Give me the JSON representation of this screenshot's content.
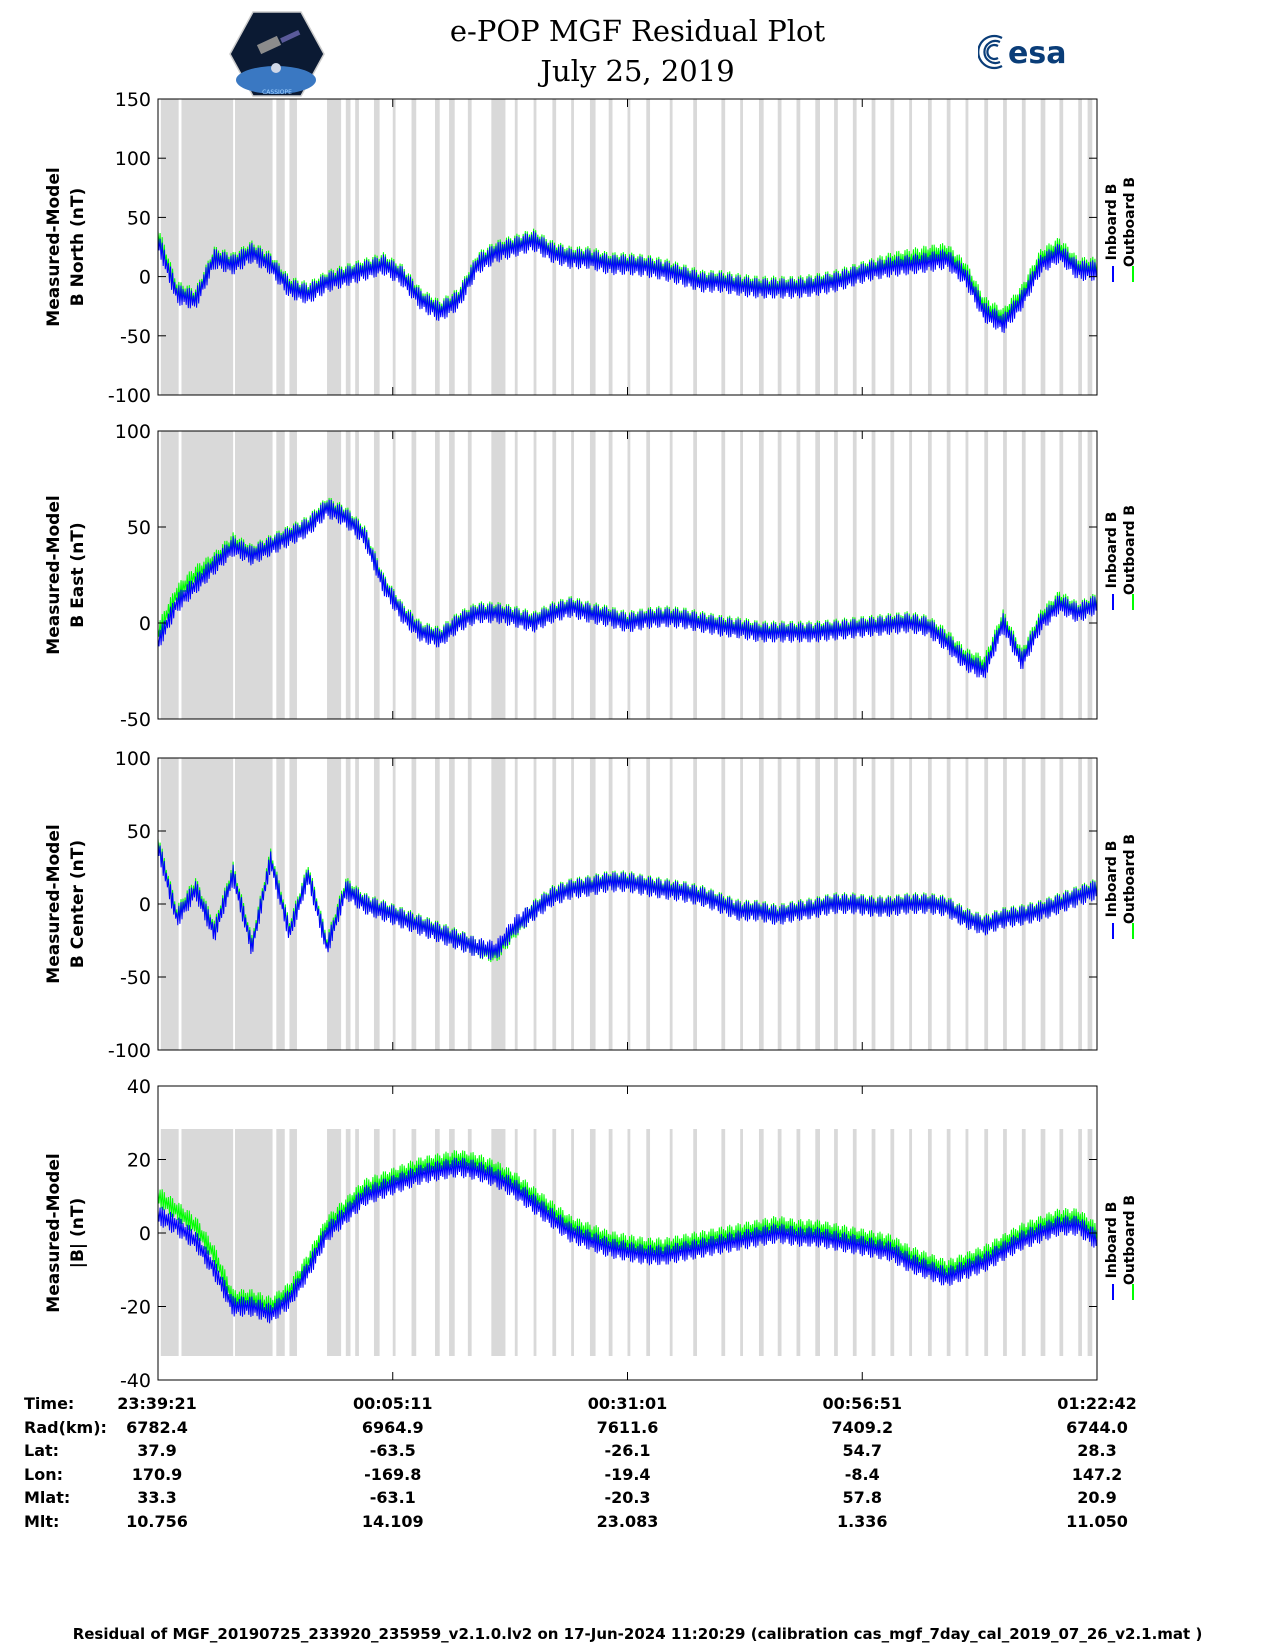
{
  "title": "e-POP MGF Residual Plot",
  "date": "July 25, 2019",
  "logo_left": "CASSIOPE",
  "logo_right": "esa",
  "legend": {
    "inboard_label": "Inboard B",
    "outboard_label": "Outboard B",
    "inboard_color": "#0000ff",
    "outboard_color": "#00ff00"
  },
  "colors": {
    "gap_shading": "#d9d9d9",
    "axes": "#000000"
  },
  "chart_data": [
    {
      "type": "line",
      "ylabel": [
        "Measured-Model",
        "B North (nT)"
      ],
      "ylim": [
        -100,
        150
      ],
      "yticks": [
        -100,
        -50,
        0,
        50,
        100,
        150
      ],
      "series": [
        {
          "name": "Inboard B",
          "x": [
            0,
            0.02,
            0.04,
            0.06,
            0.08,
            0.1,
            0.12,
            0.14,
            0.16,
            0.18,
            0.2,
            0.22,
            0.24,
            0.26,
            0.28,
            0.3,
            0.32,
            0.34,
            0.36,
            0.38,
            0.4,
            0.42,
            0.44,
            0.46,
            0.48,
            0.5,
            0.52,
            0.54,
            0.56,
            0.58,
            0.6,
            0.62,
            0.64,
            0.66,
            0.68,
            0.7,
            0.72,
            0.74,
            0.76,
            0.78,
            0.8,
            0.82,
            0.84,
            0.86,
            0.88,
            0.9,
            0.92,
            0.94,
            0.96,
            0.98,
            1.0
          ],
          "y": [
            30,
            -15,
            -20,
            15,
            10,
            20,
            10,
            -10,
            -15,
            -5,
            0,
            5,
            10,
            0,
            -20,
            -30,
            -20,
            10,
            20,
            25,
            30,
            20,
            15,
            15,
            10,
            10,
            8,
            5,
            0,
            -5,
            -5,
            -8,
            -10,
            -10,
            -10,
            -8,
            -5,
            0,
            5,
            8,
            10,
            12,
            15,
            0,
            -30,
            -40,
            -20,
            10,
            20,
            5,
            5
          ]
        },
        {
          "name": "Outboard B",
          "x": [
            0,
            0.02,
            0.04,
            0.06,
            0.08,
            0.1,
            0.12,
            0.14,
            0.16,
            0.18,
            0.2,
            0.22,
            0.24,
            0.26,
            0.28,
            0.3,
            0.32,
            0.34,
            0.36,
            0.38,
            0.4,
            0.42,
            0.44,
            0.46,
            0.48,
            0.5,
            0.52,
            0.54,
            0.56,
            0.58,
            0.6,
            0.62,
            0.64,
            0.66,
            0.68,
            0.7,
            0.72,
            0.74,
            0.76,
            0.78,
            0.8,
            0.82,
            0.84,
            0.86,
            0.88,
            0.9,
            0.92,
            0.94,
            0.96,
            0.98,
            1.0
          ],
          "y": [
            35,
            -12,
            -18,
            17,
            12,
            22,
            12,
            -8,
            -13,
            -3,
            2,
            7,
            12,
            2,
            -18,
            -28,
            -18,
            12,
            22,
            27,
            32,
            22,
            17,
            17,
            12,
            12,
            10,
            7,
            2,
            -3,
            -3,
            -6,
            -8,
            -8,
            -8,
            -6,
            -3,
            2,
            7,
            12,
            15,
            18,
            20,
            5,
            -25,
            -35,
            -15,
            15,
            25,
            8,
            8
          ]
        }
      ]
    },
    {
      "type": "line",
      "ylabel": [
        "Measured-Model",
        "B East (nT)"
      ],
      "ylim": [
        -50,
        100
      ],
      "yticks": [
        -50,
        0,
        50,
        100
      ],
      "series": [
        {
          "name": "Inboard B",
          "x": [
            0,
            0.02,
            0.04,
            0.06,
            0.08,
            0.1,
            0.12,
            0.14,
            0.16,
            0.18,
            0.2,
            0.22,
            0.24,
            0.26,
            0.28,
            0.3,
            0.32,
            0.34,
            0.36,
            0.38,
            0.4,
            0.42,
            0.44,
            0.46,
            0.48,
            0.5,
            0.52,
            0.54,
            0.56,
            0.58,
            0.6,
            0.62,
            0.64,
            0.66,
            0.68,
            0.7,
            0.72,
            0.74,
            0.76,
            0.78,
            0.8,
            0.82,
            0.84,
            0.86,
            0.88,
            0.9,
            0.92,
            0.94,
            0.96,
            0.98,
            1.0
          ],
          "y": [
            -10,
            10,
            20,
            30,
            40,
            35,
            40,
            45,
            50,
            60,
            55,
            45,
            20,
            5,
            -5,
            -8,
            0,
            5,
            5,
            3,
            0,
            5,
            8,
            5,
            3,
            0,
            2,
            3,
            2,
            0,
            -2,
            -3,
            -5,
            -5,
            -5,
            -5,
            -4,
            -3,
            -2,
            -1,
            0,
            -2,
            -10,
            -20,
            -25,
            0,
            -20,
            0,
            10,
            5,
            10
          ]
        },
        {
          "name": "Outboard B",
          "x": [
            0,
            0.02,
            0.04,
            0.06,
            0.08,
            0.1,
            0.12,
            0.14,
            0.16,
            0.18,
            0.2,
            0.22,
            0.24,
            0.26,
            0.28,
            0.3,
            0.32,
            0.34,
            0.36,
            0.38,
            0.4,
            0.42,
            0.44,
            0.46,
            0.48,
            0.5,
            0.52,
            0.54,
            0.56,
            0.58,
            0.6,
            0.62,
            0.64,
            0.66,
            0.68,
            0.7,
            0.72,
            0.74,
            0.76,
            0.78,
            0.8,
            0.82,
            0.84,
            0.86,
            0.88,
            0.9,
            0.92,
            0.94,
            0.96,
            0.98,
            1.0
          ],
          "y": [
            -5,
            15,
            25,
            32,
            42,
            36,
            41,
            46,
            51,
            61,
            56,
            46,
            21,
            6,
            -4,
            -7,
            1,
            6,
            6,
            4,
            1,
            6,
            9,
            6,
            4,
            1,
            3,
            4,
            3,
            1,
            -1,
            -2,
            -4,
            -4,
            -4,
            -4,
            -3,
            -2,
            -1,
            0,
            1,
            -1,
            -8,
            -18,
            -22,
            2,
            -18,
            2,
            12,
            6,
            11
          ]
        }
      ]
    },
    {
      "type": "line",
      "ylabel": [
        "Measured-Model",
        "B Center (nT)"
      ],
      "ylim": [
        -100,
        100
      ],
      "yticks": [
        -100,
        -50,
        0,
        50,
        100
      ],
      "series": [
        {
          "name": "Inboard B",
          "x": [
            0,
            0.02,
            0.04,
            0.06,
            0.08,
            0.1,
            0.12,
            0.14,
            0.16,
            0.18,
            0.2,
            0.22,
            0.24,
            0.26,
            0.28,
            0.3,
            0.32,
            0.34,
            0.36,
            0.38,
            0.4,
            0.42,
            0.44,
            0.46,
            0.48,
            0.5,
            0.52,
            0.54,
            0.56,
            0.58,
            0.6,
            0.62,
            0.64,
            0.66,
            0.68,
            0.7,
            0.72,
            0.74,
            0.76,
            0.78,
            0.8,
            0.82,
            0.84,
            0.86,
            0.88,
            0.9,
            0.92,
            0.94,
            0.96,
            0.98,
            1.0
          ],
          "y": [
            40,
            -10,
            10,
            -20,
            20,
            -30,
            30,
            -20,
            20,
            -30,
            10,
            0,
            -5,
            -10,
            -15,
            -20,
            -25,
            -30,
            -32,
            -15,
            -5,
            5,
            10,
            12,
            15,
            15,
            12,
            10,
            8,
            5,
            0,
            -5,
            -5,
            -8,
            -5,
            -3,
            0,
            0,
            -2,
            -2,
            0,
            0,
            -2,
            -10,
            -15,
            -10,
            -8,
            -5,
            0,
            5,
            10
          ]
        },
        {
          "name": "Outboard B",
          "x": [
            0,
            0.02,
            0.04,
            0.06,
            0.08,
            0.1,
            0.12,
            0.14,
            0.16,
            0.18,
            0.2,
            0.22,
            0.24,
            0.26,
            0.28,
            0.3,
            0.32,
            0.34,
            0.36,
            0.38,
            0.4,
            0.42,
            0.44,
            0.46,
            0.48,
            0.5,
            0.52,
            0.54,
            0.56,
            0.58,
            0.6,
            0.62,
            0.64,
            0.66,
            0.68,
            0.7,
            0.72,
            0.74,
            0.76,
            0.78,
            0.8,
            0.82,
            0.84,
            0.86,
            0.88,
            0.9,
            0.92,
            0.94,
            0.96,
            0.98,
            1.0
          ],
          "y": [
            42,
            -8,
            12,
            -18,
            22,
            -28,
            32,
            -18,
            22,
            -28,
            12,
            1,
            -4,
            -9,
            -14,
            -19,
            -24,
            -30,
            -34,
            -17,
            -4,
            6,
            11,
            13,
            16,
            16,
            13,
            11,
            9,
            6,
            1,
            -4,
            -4,
            -7,
            -4,
            -2,
            1,
            1,
            -1,
            -1,
            1,
            1,
            -1,
            -9,
            -14,
            -9,
            -7,
            -4,
            1,
            6,
            11
          ]
        }
      ]
    },
    {
      "type": "line",
      "ylabel": [
        "Measured-Model",
        "|B| (nT)"
      ],
      "ylim": [
        -40,
        40
      ],
      "yticks": [
        -40,
        -20,
        0,
        20,
        40
      ],
      "series": [
        {
          "name": "Inboard B",
          "x": [
            0,
            0.02,
            0.04,
            0.06,
            0.08,
            0.1,
            0.12,
            0.14,
            0.16,
            0.18,
            0.2,
            0.22,
            0.24,
            0.26,
            0.28,
            0.3,
            0.32,
            0.34,
            0.36,
            0.38,
            0.4,
            0.42,
            0.44,
            0.46,
            0.48,
            0.5,
            0.52,
            0.54,
            0.56,
            0.58,
            0.6,
            0.62,
            0.64,
            0.66,
            0.68,
            0.7,
            0.72,
            0.74,
            0.76,
            0.78,
            0.8,
            0.82,
            0.84,
            0.86,
            0.88,
            0.9,
            0.92,
            0.94,
            0.96,
            0.98,
            1.0
          ],
          "y": [
            5,
            2,
            -2,
            -10,
            -20,
            -20,
            -22,
            -18,
            -10,
            0,
            5,
            10,
            12,
            14,
            16,
            17,
            18,
            17,
            15,
            12,
            8,
            4,
            0,
            -2,
            -4,
            -5,
            -6,
            -6,
            -5,
            -4,
            -3,
            -2,
            -1,
            0,
            -1,
            -1,
            -2,
            -3,
            -4,
            -5,
            -8,
            -10,
            -12,
            -10,
            -8,
            -5,
            -2,
            0,
            2,
            2,
            -2
          ]
        },
        {
          "name": "Outboard B",
          "x": [
            0,
            0.02,
            0.04,
            0.06,
            0.08,
            0.1,
            0.12,
            0.14,
            0.16,
            0.18,
            0.2,
            0.22,
            0.24,
            0.26,
            0.28,
            0.3,
            0.32,
            0.34,
            0.36,
            0.38,
            0.4,
            0.42,
            0.44,
            0.46,
            0.48,
            0.5,
            0.52,
            0.54,
            0.56,
            0.58,
            0.6,
            0.62,
            0.64,
            0.66,
            0.68,
            0.7,
            0.72,
            0.74,
            0.76,
            0.78,
            0.8,
            0.82,
            0.84,
            0.86,
            0.88,
            0.9,
            0.92,
            0.94,
            0.96,
            0.98,
            1.0
          ],
          "y": [
            10,
            6,
            2,
            -6,
            -18,
            -18,
            -20,
            -16,
            -8,
            2,
            7,
            12,
            14,
            16,
            18,
            19,
            20,
            19,
            17,
            14,
            10,
            6,
            2,
            0,
            -2,
            -3,
            -4,
            -4,
            -3,
            -2,
            -1,
            0,
            1,
            2,
            1,
            1,
            0,
            -1,
            -2,
            -3,
            -6,
            -8,
            -10,
            -8,
            -6,
            -3,
            0,
            2,
            4,
            4,
            0
          ]
        }
      ]
    }
  ],
  "xticks": [
    "23:39:21",
    "00:05:11",
    "00:31:01",
    "00:56:51",
    "01:22:42"
  ],
  "ephemeris": {
    "labels": [
      "Time:",
      "Rad(km):",
      "Lat:",
      "Lon:",
      "Mlat:",
      "Mlt:"
    ],
    "columns": [
      [
        "23:39:21",
        "6782.4",
        "37.9",
        "170.9",
        "33.3",
        "10.756"
      ],
      [
        "00:05:11",
        "6964.9",
        "-63.5",
        "-169.8",
        "-63.1",
        "14.109"
      ],
      [
        "00:31:01",
        "7611.6",
        "-26.1",
        "-19.4",
        "-20.3",
        "23.083"
      ],
      [
        "00:56:51",
        "7409.2",
        "54.7",
        "-8.4",
        "57.8",
        "1.336"
      ],
      [
        "01:22:42",
        "6744.0",
        "28.3",
        "147.2",
        "20.9",
        "11.050"
      ]
    ]
  },
  "footer": "Residual of MGF_20190725_233920_235959_v2.1.0.lv2 on 17-Jun-2024 11:20:29 (calibration cas_mgf_7day_cal_2019_07_26_v2.1.mat )"
}
